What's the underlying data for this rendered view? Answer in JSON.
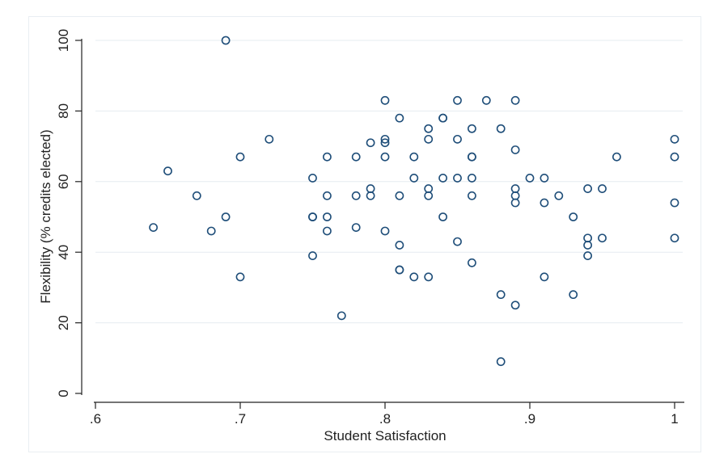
{
  "chart_data": {
    "type": "scatter",
    "title": "",
    "xlabel": "Student Satisfaction",
    "ylabel": "Flexibility (% credits elected)",
    "xlim": [
      0.6,
      1.0
    ],
    "ylim": [
      0,
      100
    ],
    "x_ticks": [
      0.6,
      0.7,
      0.8,
      0.9,
      1.0
    ],
    "x_tick_labels": [
      ".6",
      ".7",
      ".8",
      ".9",
      "1"
    ],
    "y_ticks": [
      0,
      20,
      40,
      60,
      80,
      100
    ],
    "y_tick_labels": [
      "0",
      "20",
      "40",
      "60",
      "80",
      "100"
    ],
    "grid": "horizontal",
    "marker": "hollow circle",
    "colors": {
      "marker": "#1f4e79",
      "grid": "#e6ecf0",
      "axis": "#222222"
    },
    "points": [
      [
        0.64,
        47
      ],
      [
        0.65,
        63
      ],
      [
        0.67,
        56
      ],
      [
        0.68,
        46
      ],
      [
        0.69,
        100
      ],
      [
        0.69,
        50
      ],
      [
        0.7,
        67
      ],
      [
        0.7,
        33
      ],
      [
        0.72,
        72
      ],
      [
        0.75,
        61
      ],
      [
        0.75,
        50
      ],
      [
        0.75,
        50
      ],
      [
        0.75,
        39
      ],
      [
        0.76,
        67
      ],
      [
        0.76,
        56
      ],
      [
        0.76,
        50
      ],
      [
        0.76,
        46
      ],
      [
        0.77,
        22
      ],
      [
        0.78,
        67
      ],
      [
        0.78,
        56
      ],
      [
        0.78,
        47
      ],
      [
        0.79,
        71
      ],
      [
        0.79,
        58
      ],
      [
        0.79,
        56
      ],
      [
        0.8,
        83
      ],
      [
        0.8,
        72
      ],
      [
        0.8,
        71
      ],
      [
        0.8,
        67
      ],
      [
        0.8,
        46
      ],
      [
        0.81,
        78
      ],
      [
        0.81,
        56
      ],
      [
        0.81,
        42
      ],
      [
        0.81,
        35
      ],
      [
        0.81,
        35
      ],
      [
        0.82,
        67
      ],
      [
        0.82,
        61
      ],
      [
        0.82,
        33
      ],
      [
        0.83,
        75
      ],
      [
        0.83,
        72
      ],
      [
        0.83,
        58
      ],
      [
        0.83,
        56
      ],
      [
        0.83,
        33
      ],
      [
        0.84,
        78
      ],
      [
        0.84,
        78
      ],
      [
        0.84,
        61
      ],
      [
        0.84,
        50
      ],
      [
        0.85,
        83
      ],
      [
        0.85,
        72
      ],
      [
        0.85,
        61
      ],
      [
        0.85,
        43
      ],
      [
        0.86,
        75
      ],
      [
        0.86,
        67
      ],
      [
        0.86,
        67
      ],
      [
        0.86,
        61
      ],
      [
        0.86,
        56
      ],
      [
        0.86,
        37
      ],
      [
        0.87,
        83
      ],
      [
        0.88,
        75
      ],
      [
        0.88,
        28
      ],
      [
        0.88,
        9
      ],
      [
        0.89,
        83
      ],
      [
        0.89,
        69
      ],
      [
        0.89,
        58
      ],
      [
        0.89,
        56
      ],
      [
        0.89,
        54
      ],
      [
        0.89,
        25
      ],
      [
        0.9,
        61
      ],
      [
        0.91,
        61
      ],
      [
        0.91,
        54
      ],
      [
        0.91,
        33
      ],
      [
        0.92,
        56
      ],
      [
        0.93,
        50
      ],
      [
        0.93,
        28
      ],
      [
        0.94,
        58
      ],
      [
        0.94,
        44
      ],
      [
        0.94,
        42
      ],
      [
        0.94,
        39
      ],
      [
        0.95,
        58
      ],
      [
        0.95,
        44
      ],
      [
        0.96,
        67
      ],
      [
        1.0,
        72
      ],
      [
        1.0,
        67
      ],
      [
        1.0,
        54
      ],
      [
        1.0,
        44
      ]
    ]
  }
}
